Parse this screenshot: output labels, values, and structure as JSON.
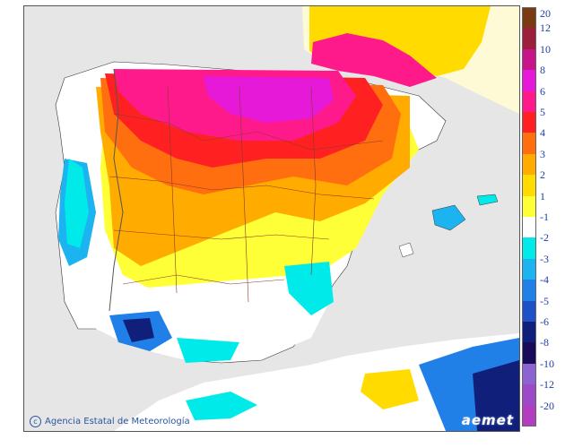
{
  "map": {
    "credit_text": "Agencia Estatal de Meteorología",
    "brand_text": "aemet",
    "credit_icon": "copyright-icon"
  },
  "legend": {
    "items": [
      {
        "label": "20",
        "color": "#7a3a12"
      },
      {
        "label": "12",
        "color": "#9e1f3c"
      },
      {
        "label": "10",
        "color": "#c8148a"
      },
      {
        "label": "8",
        "color": "#e619d8"
      },
      {
        "label": "6",
        "color": "#ff1a8c"
      },
      {
        "label": "5",
        "color": "#ff2121"
      },
      {
        "label": "4",
        "color": "#ff6f0f"
      },
      {
        "label": "3",
        "color": "#ffab00"
      },
      {
        "label": "2",
        "color": "#ffdb00"
      },
      {
        "label": "1",
        "color": "#ffff38"
      },
      {
        "label": "-1",
        "color": "#ffffff"
      },
      {
        "label": "-2",
        "color": "#00eaea"
      },
      {
        "label": "-3",
        "color": "#1cb4f0"
      },
      {
        "label": "-4",
        "color": "#2080e8"
      },
      {
        "label": "-5",
        "color": "#1e50c8"
      },
      {
        "label": "-6",
        "color": "#10207a"
      },
      {
        "label": "-8",
        "color": "#1a0a5a"
      },
      {
        "label": "-10",
        "color": "#8c64d2"
      },
      {
        "label": "-12",
        "color": "#9c4ac8"
      },
      {
        "label": "-20",
        "color": "#b43cc0"
      }
    ]
  }
}
